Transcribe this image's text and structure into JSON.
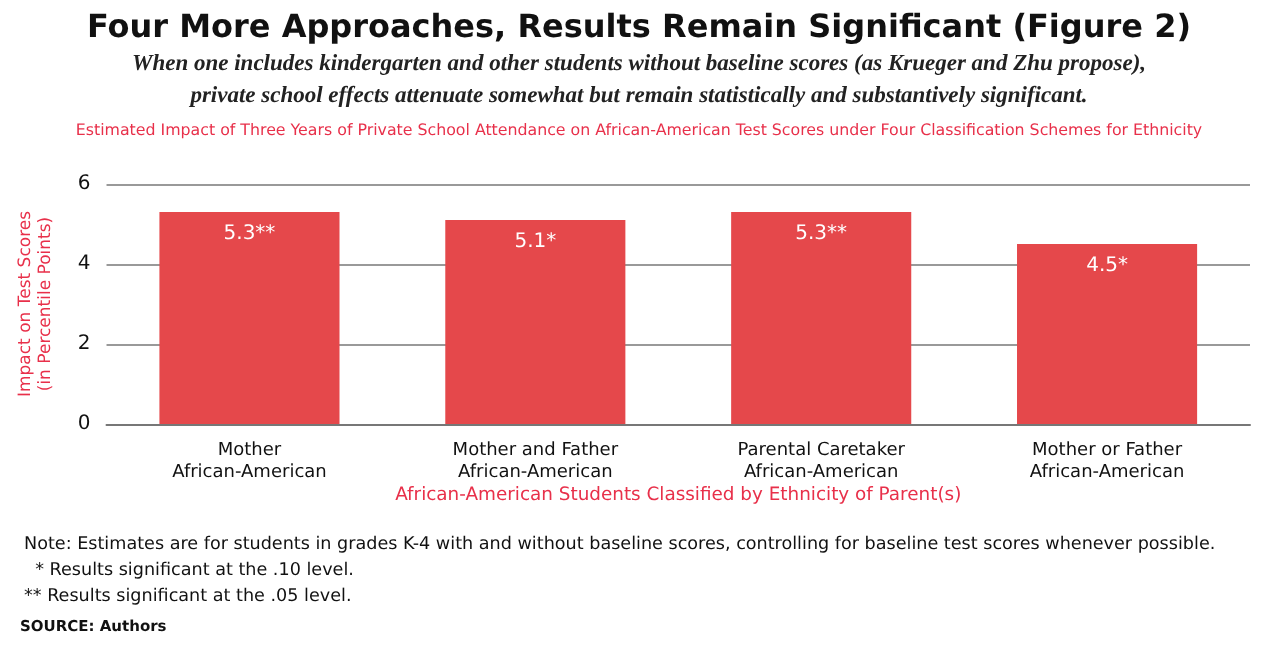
{
  "chart_data": {
    "type": "bar",
    "title": "Four More Approaches, Results Remain Significant (Figure 2)",
    "subtitle": "When one includes kindergarten and other students without baseline scores (as Krueger and Zhu propose),\nprivate school effects attenuate somewhat but remain statistically and substantively significant.",
    "xlabel": "African-American Students Classified by Ethnicity of Parent(s)",
    "ylabel": "Impact on Test Scores\n(in Percentile Points)",
    "categories": [
      "Mother\nAfrican-American",
      "Mother and Father\nAfrican-American",
      "Parental Caretaker\nAfrican-American",
      "Mother or Father\nAfrican-American"
    ],
    "values": [
      5.3,
      5.1,
      5.3,
      4.5
    ],
    "value_labels": [
      "5.3**",
      "5.1*",
      "5.3**",
      "4.5*"
    ],
    "color": "#e5484b",
    "ylim": [
      0,
      6
    ],
    "yticks": [
      0,
      2,
      4,
      6
    ],
    "grid": "y",
    "annotations": [
      "Estimated Impact of Three Years of Private School Attendance on African-American Test Scores under Four Classification Schemes for Ethnicity",
      "Note: Estimates are for students in grades K-4 with and without baseline scores, controlling for baseline test scores whenever possible.",
      "  * Results significant at the .10 level.",
      "** Results significant at the .05 level.",
      "SOURCE: Authors"
    ]
  }
}
